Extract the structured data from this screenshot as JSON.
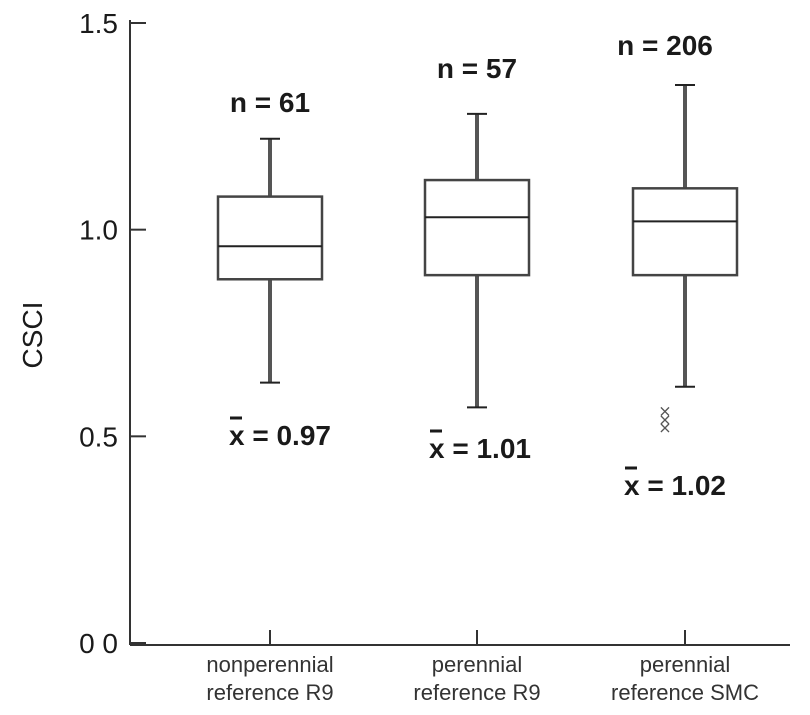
{
  "chart_data": {
    "type": "box",
    "ylabel": "CSCI",
    "xlabel": "",
    "ylim": [
      0,
      1.5
    ],
    "yticks": [
      {
        "value": 0.0,
        "label": "0 0"
      },
      {
        "value": 0.5,
        "label": "0.5"
      },
      {
        "value": 1.0,
        "label": "1.0"
      },
      {
        "value": 1.5,
        "label": "1.5"
      }
    ],
    "categories": [
      {
        "line1": "nonperennial",
        "line2": "reference R9"
      },
      {
        "line1": "perennial",
        "line2": "reference R9"
      },
      {
        "line1": "perennial",
        "line2": "reference SMC"
      }
    ],
    "boxes": [
      {
        "n_label": "n = 61",
        "mean_label": "x = 0.97",
        "min": 0.63,
        "q1": 0.88,
        "median": 0.96,
        "q3": 1.08,
        "max": 1.22,
        "outliers": []
      },
      {
        "n_label": "n = 57",
        "mean_label": "x = 1.01",
        "min": 0.57,
        "q1": 0.89,
        "median": 1.03,
        "q3": 1.12,
        "max": 1.28,
        "outliers": []
      },
      {
        "n_label": "n = 206",
        "mean_label": "x = 1.02",
        "min": 0.62,
        "q1": 0.89,
        "median": 1.02,
        "q3": 1.1,
        "max": 1.35,
        "outliers": [
          0.56,
          0.54,
          0.52
        ]
      }
    ],
    "outlier_marker": "×",
    "grid": false
  }
}
